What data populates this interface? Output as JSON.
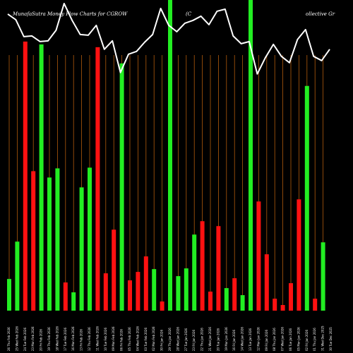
{
  "chart_data": {
    "type": "bar",
    "title_parts": [
      "MunafaSutra  Money Flow  Charts for CGROW",
      "(C",
      "ollective   Gr"
    ],
    "categories": [
      "26 Thu Feb 2026",
      "25 Wed Feb 2026",
      "24 Tue Feb 2026",
      "23 Mon Feb 2026",
      "20 Fri Feb 2026",
      "19 Thu Feb 2026",
      "18 Wed Feb 2026",
      "17 Tue Feb 2026",
      "16 Mon Feb 2026",
      "13 Fri Feb 2026",
      "12 Thu Feb 2026",
      "11 Wed Feb 2026",
      "10 Tue Feb 2026",
      "09 Mon Feb 2026",
      "06 Fri Feb 2026",
      "05 Thu Feb 2026",
      "04 Wed Feb 2026",
      "03 Tue Feb 2026",
      "02 Mon Feb 2026",
      "30 Fri Jan 2026",
      "29 Thu Jan 2026",
      "28 Wed Jan 2026",
      "27 Tue Jan 2026",
      "23 Fri Jan 2026",
      "22 Thu Jan 2026",
      "21 Wed Jan 2026",
      "20 Tue Jan 2026",
      "19 Mon Jan 2026",
      "16 Fri Jan 2026",
      "14 Wed Jan 2026",
      "13 Tue Jan 2026",
      "12 Mon Jan 2026",
      "09 Fri Jan 2026",
      "08 Thu Jan 2026",
      "07 Wed Jan 2026",
      "06 Tue Jan 2026",
      "05 Mon Jan 2026",
      "02 Fri Jan 2026",
      "01 Thu Jan 2026",
      "31 Wed Dec 2025",
      "30 Tue Dec 2025"
    ],
    "bars": [
      {
        "value": 45,
        "color": "green"
      },
      {
        "value": 98,
        "color": "green"
      },
      {
        "value": 382,
        "color": "red"
      },
      {
        "value": 198,
        "color": "red"
      },
      {
        "value": 378,
        "color": "green"
      },
      {
        "value": 189,
        "color": "green"
      },
      {
        "value": 202,
        "color": "green"
      },
      {
        "value": 40,
        "color": "red"
      },
      {
        "value": 26,
        "color": "green"
      },
      {
        "value": 175,
        "color": "green"
      },
      {
        "value": 203,
        "color": "green"
      },
      {
        "value": 374,
        "color": "red"
      },
      {
        "value": 53,
        "color": "red"
      },
      {
        "value": 115,
        "color": "red"
      },
      {
        "value": 351,
        "color": "green"
      },
      {
        "value": 43,
        "color": "red"
      },
      {
        "value": 55,
        "color": "red"
      },
      {
        "value": 77,
        "color": "red"
      },
      {
        "value": 59,
        "color": "green"
      },
      {
        "value": 13,
        "color": "red"
      },
      {
        "value": 441,
        "color": "green"
      },
      {
        "value": 49,
        "color": "green"
      },
      {
        "value": 60,
        "color": "green"
      },
      {
        "value": 108,
        "color": "green"
      },
      {
        "value": 127,
        "color": "red"
      },
      {
        "value": 27,
        "color": "red"
      },
      {
        "value": 120,
        "color": "red"
      },
      {
        "value": 32,
        "color": "green"
      },
      {
        "value": 46,
        "color": "red"
      },
      {
        "value": 22,
        "color": "green"
      },
      {
        "value": 441,
        "color": "green"
      },
      {
        "value": 155,
        "color": "red"
      },
      {
        "value": 80,
        "color": "red"
      },
      {
        "value": 17,
        "color": "red"
      },
      {
        "value": 8,
        "color": "red"
      },
      {
        "value": 39,
        "color": "red"
      },
      {
        "value": 158,
        "color": "red"
      },
      {
        "value": 319,
        "color": "green"
      },
      {
        "value": 17,
        "color": "red"
      },
      {
        "value": 97,
        "color": "green"
      }
    ],
    "line": [
      421,
      413,
      389,
      390,
      382,
      383,
      398,
      436,
      412,
      392,
      391,
      405,
      371,
      383,
      338,
      364,
      368,
      381,
      392,
      429,
      405,
      396,
      408,
      412,
      418,
      406,
      425,
      428,
      390,
      379,
      382,
      336,
      359,
      378,
      361,
      352,
      385,
      399,
      361,
      355,
      371
    ],
    "ylim": [
      0,
      441
    ],
    "grid": "vertical",
    "legend": "none"
  },
  "colors": {
    "background": "#000000",
    "green_bar": "#22ee22",
    "red_bar": "#ff1111",
    "line": "#ffffff",
    "grid": "#b05a0c"
  }
}
